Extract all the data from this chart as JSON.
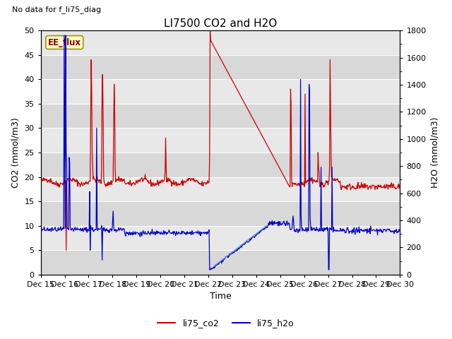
{
  "title": "LI7500 CO2 and H2O",
  "top_left_text": "No data for f_li75_diag",
  "xlabel": "Time",
  "ylabel_left": "CO2 (mmol/m3)",
  "ylabel_right": "H2O (mmol/m3)",
  "ylim_left": [
    0,
    50
  ],
  "ylim_right": [
    0,
    1800
  ],
  "yticks_left": [
    0,
    5,
    10,
    15,
    20,
    25,
    30,
    35,
    40,
    45,
    50
  ],
  "yticks_right": [
    0,
    200,
    400,
    600,
    800,
    1000,
    1200,
    1400,
    1600,
    1800
  ],
  "xtick_labels": [
    "Dec 15",
    "Dec 16",
    "Dec 17",
    "Dec 18",
    "Dec 19",
    "Dec 20",
    "Dec 21",
    "Dec 22",
    "Dec 23",
    "Dec 24",
    "Dec 25",
    "Dec 26",
    "Dec 27",
    "Dec 28",
    "Dec 29",
    "Dec 30"
  ],
  "color_co2": "#cc0000",
  "color_h2o": "#0000cc",
  "annotation_box_text": "EE_flux",
  "annotation_box_color": "#ffffcc",
  "annotation_box_border": "#999900",
  "plot_bg_color": "#e8e8e8",
  "plot_bg_color2": "#d8d8d8",
  "legend_co2": "li75_co2",
  "legend_h2o": "li75_h2o",
  "title_fontsize": 11,
  "axis_fontsize": 9,
  "tick_fontsize": 8,
  "annotation_arrow_color": "#6688cc",
  "linewidth_co2": 0.9,
  "linewidth_h2o": 0.9
}
